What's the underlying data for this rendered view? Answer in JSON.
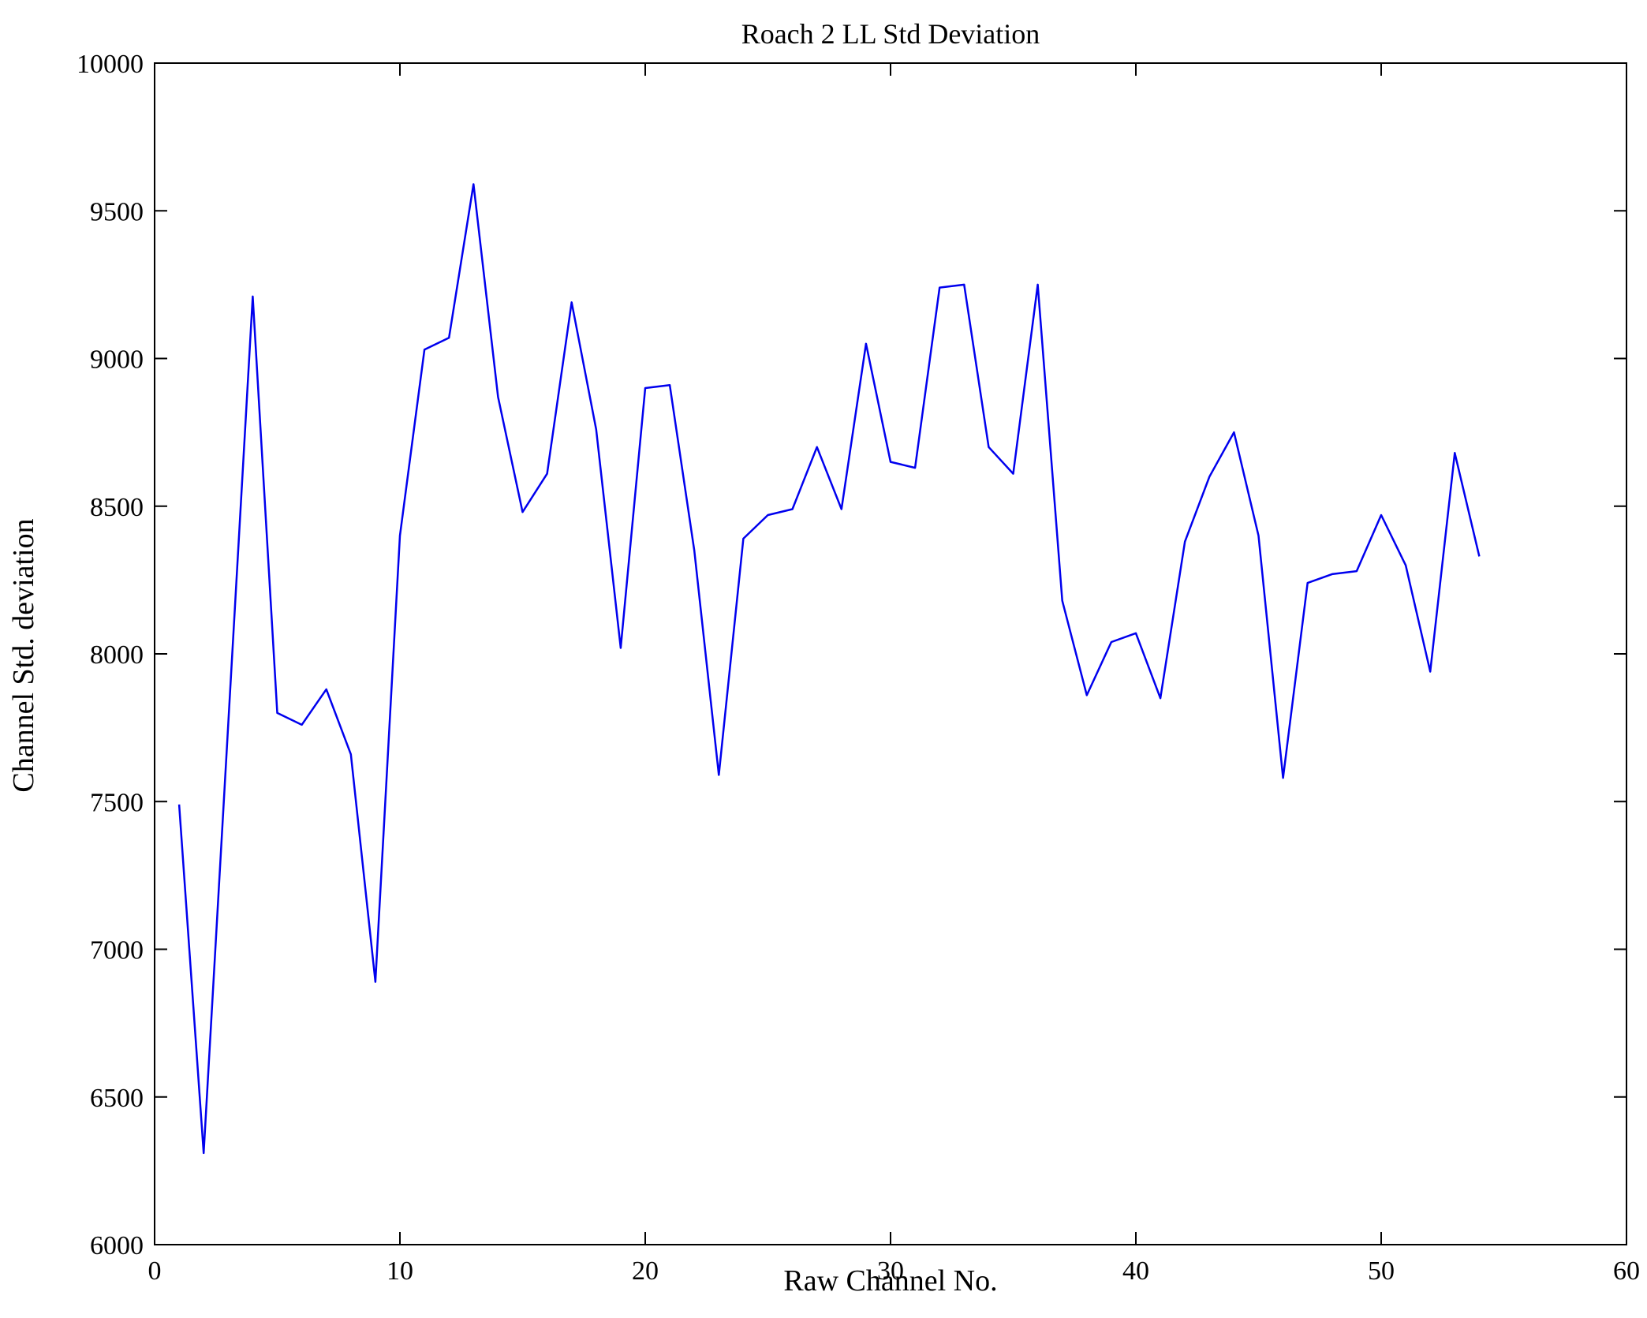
{
  "chart_data": {
    "type": "line",
    "title": "Roach 2 LL Std Deviation",
    "xlabel": "Raw Channel No.",
    "ylabel": "Channel Std. deviation",
    "xlim": [
      0,
      60
    ],
    "ylim": [
      6000,
      10000
    ],
    "xticks": [
      0,
      10,
      20,
      30,
      40,
      50,
      60
    ],
    "yticks": [
      6000,
      6500,
      7000,
      7500,
      8000,
      8500,
      9000,
      9500,
      10000
    ],
    "line_color": "#0000ee",
    "grid": false,
    "legend": "none",
    "x": [
      1,
      2,
      3,
      4,
      5,
      6,
      7,
      8,
      9,
      10,
      11,
      12,
      13,
      14,
      15,
      16,
      17,
      18,
      19,
      20,
      21,
      22,
      23,
      24,
      25,
      26,
      27,
      28,
      29,
      30,
      31,
      32,
      33,
      34,
      35,
      36,
      37,
      38,
      39,
      40,
      41,
      42,
      43,
      44,
      45,
      46,
      47,
      48,
      49,
      50,
      51,
      52,
      53,
      54
    ],
    "values": [
      7490,
      6310,
      7760,
      9210,
      7800,
      7760,
      7880,
      7660,
      6890,
      8400,
      9030,
      9070,
      9590,
      8870,
      8480,
      8610,
      9190,
      8760,
      8020,
      8900,
      8910,
      8350,
      7590,
      8390,
      8470,
      8490,
      8700,
      8490,
      9050,
      8650,
      8630,
      9240,
      9250,
      8700,
      8610,
      9250,
      8180,
      7860,
      8040,
      8070,
      7850,
      8380,
      8600,
      8750,
      8400,
      7580,
      8240,
      8270,
      8280,
      8470,
      8300,
      7940,
      8680,
      8330
    ]
  }
}
